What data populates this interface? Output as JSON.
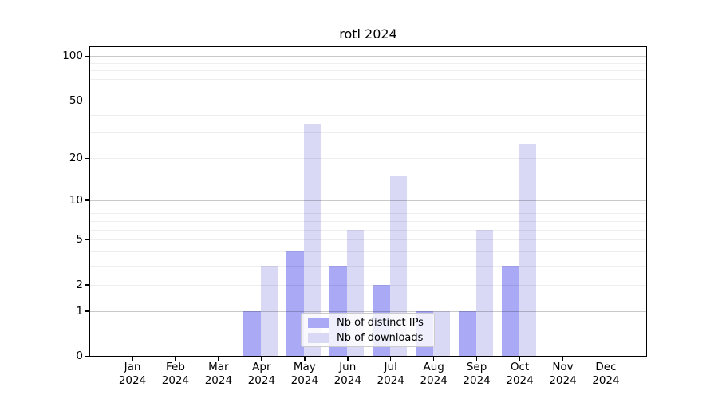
{
  "chart_data": {
    "type": "bar",
    "title": "rotl 2024",
    "categories": [
      "Jan",
      "Feb",
      "Mar",
      "Apr",
      "May",
      "Jun",
      "Jul",
      "Aug",
      "Sep",
      "Oct",
      "Nov",
      "Dec"
    ],
    "year_label": "2024",
    "series": [
      {
        "name": "Nb of distinct IPs",
        "color": "#a9a9f5",
        "values": [
          0,
          0,
          0,
          1,
          4,
          3,
          2,
          1,
          1,
          3,
          0,
          0
        ]
      },
      {
        "name": "Nb of downloads",
        "color": "#d9d9f6",
        "values": [
          0,
          0,
          0,
          3,
          34,
          6,
          15,
          1,
          6,
          25,
          0,
          0
        ]
      }
    ],
    "y_scale": "log1p",
    "y_ticks": [
      100,
      50,
      20,
      10,
      5,
      2,
      1,
      0
    ],
    "y_minor_gridlines": [
      2,
      3,
      4,
      5,
      6,
      7,
      8,
      9,
      20,
      30,
      40,
      50,
      60,
      70,
      80,
      90
    ],
    "y_major_gridlines": [
      1,
      10,
      100
    ],
    "ylim": [
      0,
      115
    ],
    "xlabel": "",
    "ylabel": "",
    "grid": true,
    "legend_position": "lower center"
  }
}
